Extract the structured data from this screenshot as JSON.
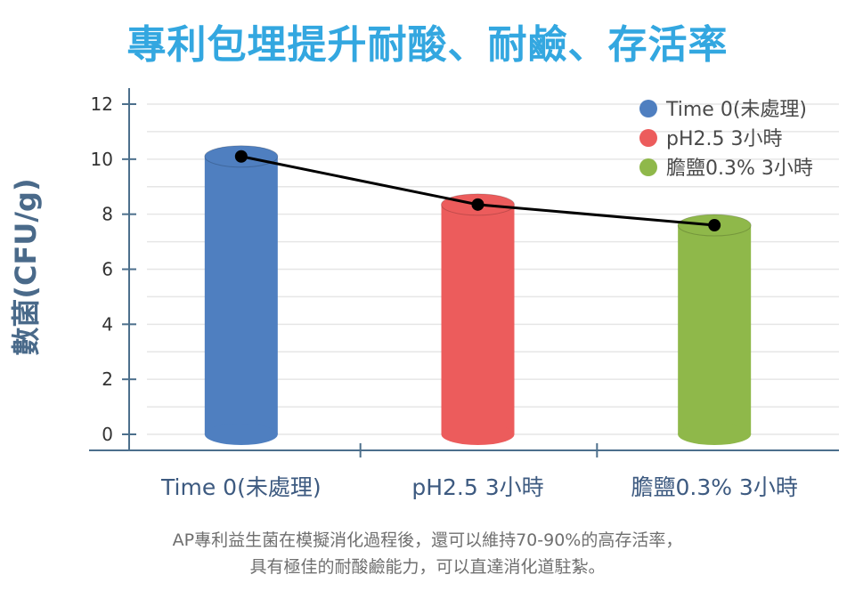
{
  "chart_data": {
    "type": "bar",
    "title": "專利包埋提升耐酸、耐鹼、存活率",
    "ylabel": "數菌(CFU/g)",
    "xlabel": "",
    "ylim": [
      0,
      12
    ],
    "yticks": [
      0,
      2,
      4,
      6,
      8,
      10,
      12
    ],
    "grid": true,
    "legend_position": "top-right",
    "categories": [
      "Time 0(未處理)",
      "pH2.5 3小時",
      "膽鹽0.3% 3小時"
    ],
    "values": [
      10.1,
      8.35,
      7.6
    ],
    "colors": [
      "#4f7fc0",
      "#ec5c5c",
      "#8fb84a"
    ],
    "legend": [
      "Time 0(未處理)",
      "pH2.5 3小時",
      "膽鹽0.3% 3小時"
    ],
    "trend_line": {
      "values": [
        10.1,
        8.35,
        7.6
      ],
      "color": "#000000"
    }
  },
  "caption": {
    "line1": "AP專利益生菌在模擬消化過程後，還可以維持70-90%的高存活率，",
    "line2": "具有極佳的耐酸鹼能力，可以直達消化道駐紮。"
  },
  "colors": {
    "title": "#33a7e0",
    "axis": "#4c6f8c",
    "grid": "#e6e6e6",
    "ylabel": "#4a6a8a"
  }
}
